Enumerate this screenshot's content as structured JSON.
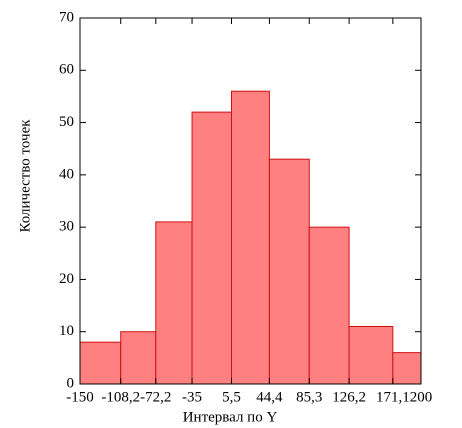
{
  "chart_data": {
    "type": "histogram",
    "x_label": "Интервал по Y",
    "y_label": "Количество точек",
    "bins": [
      -150,
      -108.2,
      -72.2,
      -35,
      5.5,
      44.4,
      85.3,
      126.2,
      171.1,
      200
    ],
    "values": [
      8,
      10,
      31,
      52,
      56,
      43,
      30,
      11,
      6
    ],
    "color": "#ff8080",
    "edge_color": "#d01010",
    "xlim": [
      -150,
      200
    ],
    "xticks": [
      -150,
      {
        "value": -108.2,
        "label": "-108,2"
      },
      {
        "value": -72.2,
        "label": "-72,2"
      },
      -35,
      {
        "value": 5.5,
        "label": "5,5"
      },
      {
        "value": 44.4,
        "label": "44,4"
      },
      {
        "value": 85.3,
        "label": "85,3"
      },
      {
        "value": 126.2,
        "label": "126,2"
      },
      {
        "value": 171.1,
        "label": "171,1"
      },
      200
    ],
    "ylim": [
      0,
      70
    ],
    "yticks": [
      0,
      10,
      20,
      30,
      40,
      50,
      60,
      70
    ]
  }
}
